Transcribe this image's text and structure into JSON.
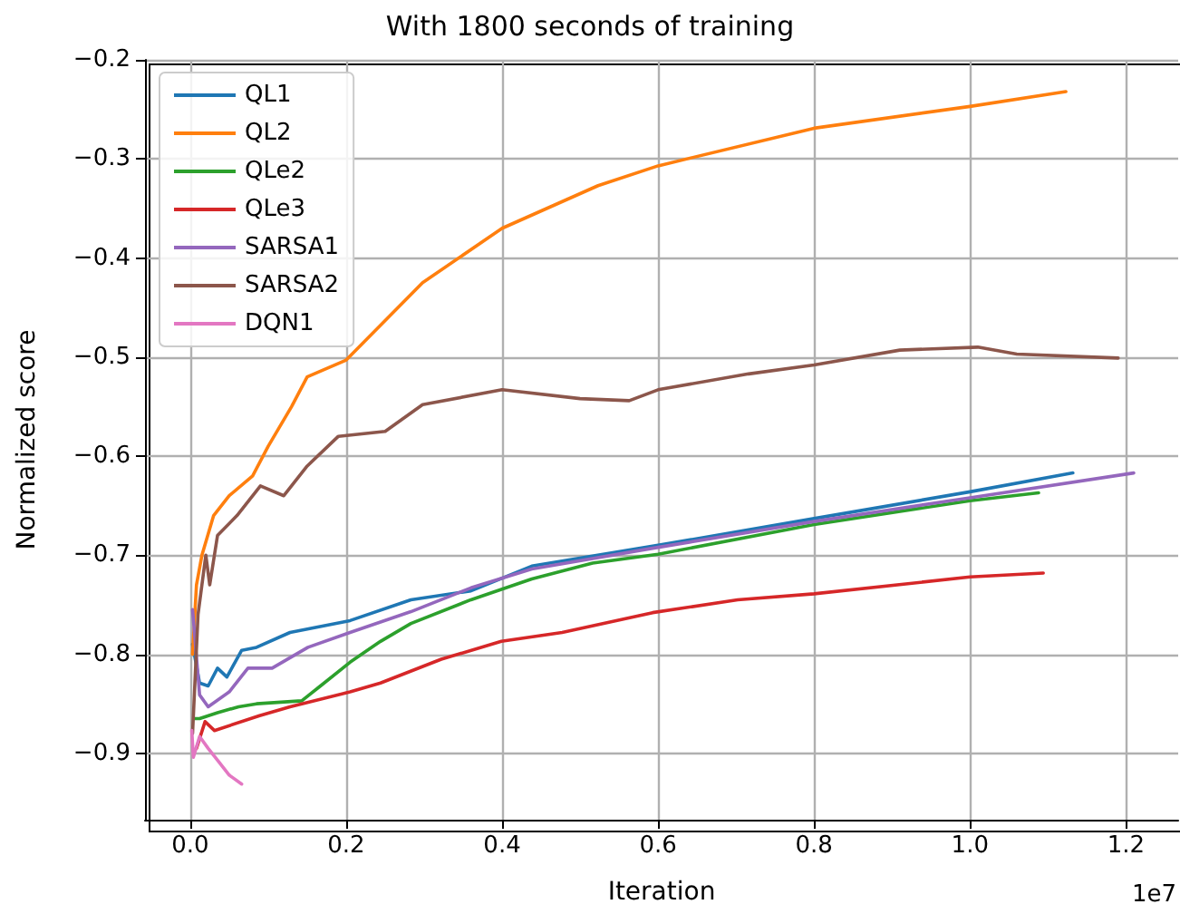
{
  "chart_data": {
    "type": "line",
    "title": "With 1800 seconds of training",
    "xlabel": "Iteration",
    "ylabel": "Normalized score",
    "annotations": [
      "1e7"
    ],
    "xlim": [
      -0.058,
      1.267
    ],
    "ylim": [
      -0.967,
      -0.2
    ],
    "xticks": [
      {
        "value": 0,
        "label": "0.0"
      },
      0.2,
      0.4,
      0.6,
      0.8,
      {
        "value": 1,
        "label": "1.0"
      },
      1.2
    ],
    "yticks": [
      {
        "value": -0.9,
        "label": "−0.9"
      },
      {
        "value": -0.8,
        "label": "−0.8"
      },
      {
        "value": -0.7,
        "label": "−0.7"
      },
      {
        "value": -0.6,
        "label": "−0.6"
      },
      {
        "value": -0.5,
        "label": "−0.5"
      },
      {
        "value": -0.4,
        "label": "−0.4"
      },
      {
        "value": -0.3,
        "label": "−0.3"
      },
      {
        "value": -0.2,
        "label": "−0.2"
      }
    ],
    "grid": true,
    "legend": "top left",
    "marker": "none",
    "line_style": "solid",
    "series": [
      {
        "name": "QL1",
        "color": "#1f77b4",
        "x": [
          0.003,
          0.012,
          0.023,
          0.035,
          0.047,
          0.066,
          0.085,
          0.128,
          0.205,
          0.283,
          0.36,
          0.438,
          0.6,
          0.8,
          1.0,
          1.132
        ],
        "values": [
          -0.79,
          -0.829,
          -0.832,
          -0.814,
          -0.823,
          -0.796,
          -0.793,
          -0.778,
          -0.766,
          -0.745,
          -0.736,
          -0.711,
          -0.69,
          -0.663,
          -0.636,
          -0.617
        ]
      },
      {
        "name": "QL2",
        "color": "#ff7f0e",
        "x": [
          0.003,
          0.008,
          0.015,
          0.03,
          0.05,
          0.08,
          0.1,
          0.13,
          0.15,
          0.2,
          0.298,
          0.4,
          0.523,
          0.6,
          0.8,
          1.0,
          1.123
        ],
        "values": [
          -0.8,
          -0.73,
          -0.7,
          -0.66,
          -0.64,
          -0.62,
          -0.59,
          -0.55,
          -0.52,
          -0.503,
          -0.425,
          -0.37,
          -0.327,
          -0.307,
          -0.269,
          -0.247,
          -0.232
        ]
      },
      {
        "name": "QLe2",
        "color": "#2ca02c",
        "x": [
          0.006,
          0.012,
          0.035,
          0.062,
          0.085,
          0.143,
          0.167,
          0.205,
          0.244,
          0.283,
          0.36,
          0.438,
          0.516,
          0.6,
          0.8,
          1.0,
          1.088
        ],
        "values": [
          -0.865,
          -0.865,
          -0.859,
          -0.853,
          -0.85,
          -0.847,
          -0.832,
          -0.808,
          -0.787,
          -0.769,
          -0.745,
          -0.724,
          -0.708,
          -0.699,
          -0.669,
          -0.645,
          -0.637
        ]
      },
      {
        "name": "QLe3",
        "color": "#d62728",
        "x": [
          0.008,
          0.019,
          0.031,
          0.089,
          0.128,
          0.205,
          0.244,
          0.322,
          0.399,
          0.477,
          0.593,
          0.702,
          0.8,
          1.0,
          1.094
        ],
        "values": [
          -0.895,
          -0.868,
          -0.877,
          -0.862,
          -0.853,
          -0.838,
          -0.829,
          -0.805,
          -0.787,
          -0.778,
          -0.758,
          -0.745,
          -0.739,
          -0.722,
          -0.718
        ]
      },
      {
        "name": "SARSA1",
        "color": "#9467bd",
        "x": [
          0.003,
          0.012,
          0.023,
          0.05,
          0.074,
          0.105,
          0.151,
          0.205,
          0.283,
          0.36,
          0.438,
          0.593,
          0.8,
          1.0,
          1.21
        ],
        "values": [
          -0.755,
          -0.841,
          -0.853,
          -0.838,
          -0.814,
          -0.814,
          -0.793,
          -0.778,
          -0.757,
          -0.733,
          -0.714,
          -0.693,
          -0.666,
          -0.642,
          -0.617
        ]
      },
      {
        "name": "SARSA2",
        "color": "#8c564b",
        "x": [
          0.003,
          0.01,
          0.02,
          0.025,
          0.035,
          0.06,
          0.09,
          0.12,
          0.15,
          0.19,
          0.25,
          0.298,
          0.4,
          0.5,
          0.563,
          0.6,
          0.716,
          0.8,
          0.91,
          1.01,
          1.06,
          1.19
        ],
        "values": [
          -0.88,
          -0.76,
          -0.7,
          -0.73,
          -0.68,
          -0.66,
          -0.63,
          -0.64,
          -0.61,
          -0.58,
          -0.575,
          -0.548,
          -0.533,
          -0.542,
          -0.544,
          -0.533,
          -0.517,
          -0.508,
          -0.493,
          -0.49,
          -0.497,
          -0.501
        ]
      },
      {
        "name": "DQN1",
        "color": "#e377c2",
        "x": [
          0.002,
          0.004,
          0.012,
          0.023,
          0.035,
          0.05,
          0.066
        ],
        "values": [
          -0.877,
          -0.904,
          -0.883,
          -0.895,
          -0.907,
          -0.922,
          -0.931
        ]
      }
    ]
  }
}
